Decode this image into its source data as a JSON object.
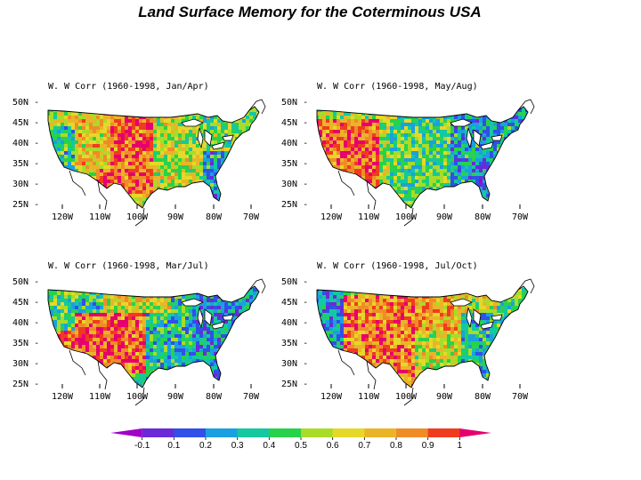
{
  "title": "Land Surface Memory for the Coterminous USA",
  "panels": [
    {
      "label": "W. W Corr (1960-1998, Jan/Apr)"
    },
    {
      "label": "W. W Corr (1960-1998, May/Aug)"
    },
    {
      "label": "W. W Corr (1960-1998, Mar/Jul)"
    },
    {
      "label": "W. W Corr (1960-1998, Jul/Oct)"
    }
  ],
  "axes": {
    "lat_ticks": [
      "50N",
      "45N",
      "40N",
      "35N",
      "30N",
      "25N"
    ],
    "lon_ticks": [
      "120W",
      "110W",
      "100W",
      "90W",
      "80W",
      "70W"
    ]
  },
  "colorbar": {
    "labels": [
      "-0.1",
      "0.1",
      "0.2",
      "0.3",
      "0.4",
      "0.5",
      "0.6",
      "0.7",
      "0.8",
      "0.9",
      "1"
    ],
    "colors": [
      "#a000c8",
      "#6a2ad8",
      "#3050e8",
      "#1aa0e0",
      "#14c8a0",
      "#28d24a",
      "#a8dc28",
      "#e6d828",
      "#ebb428",
      "#f08c28",
      "#f03c1e",
      "#e6006e"
    ]
  }
}
